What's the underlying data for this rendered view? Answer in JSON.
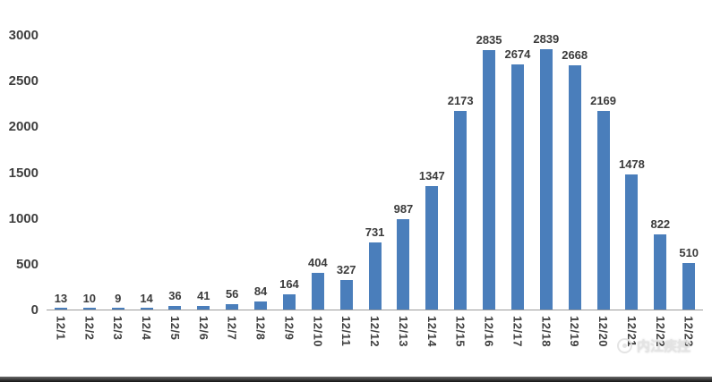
{
  "chart_data": {
    "type": "bar",
    "categories": [
      "12/1",
      "12/2",
      "12/3",
      "12/4",
      "12/5",
      "12/6",
      "12/7",
      "12/8",
      "12/9",
      "12/10",
      "12/11",
      "12/12",
      "12/13",
      "12/14",
      "12/15",
      "12/16",
      "12/17",
      "12/18",
      "12/19",
      "12/20",
      "12/21",
      "12/22",
      "12/23"
    ],
    "values": [
      13,
      10,
      9,
      14,
      36,
      41,
      56,
      84,
      164,
      404,
      327,
      731,
      987,
      1347,
      2173,
      2835,
      2674,
      2839,
      2668,
      2169,
      1478,
      822,
      510
    ],
    "title": "",
    "xlabel": "",
    "ylabel": "",
    "ylim": [
      0,
      3000
    ],
    "yticks": [
      0,
      500,
      1000,
      1500,
      2000,
      2500,
      3000
    ],
    "grid": false,
    "legend_position": "none",
    "bar_color": "#4a7ebb",
    "label_color": "#3b3b3b",
    "axis_label_color": "#3f3f3f"
  },
  "watermark": {
    "text": "内江疾控"
  }
}
